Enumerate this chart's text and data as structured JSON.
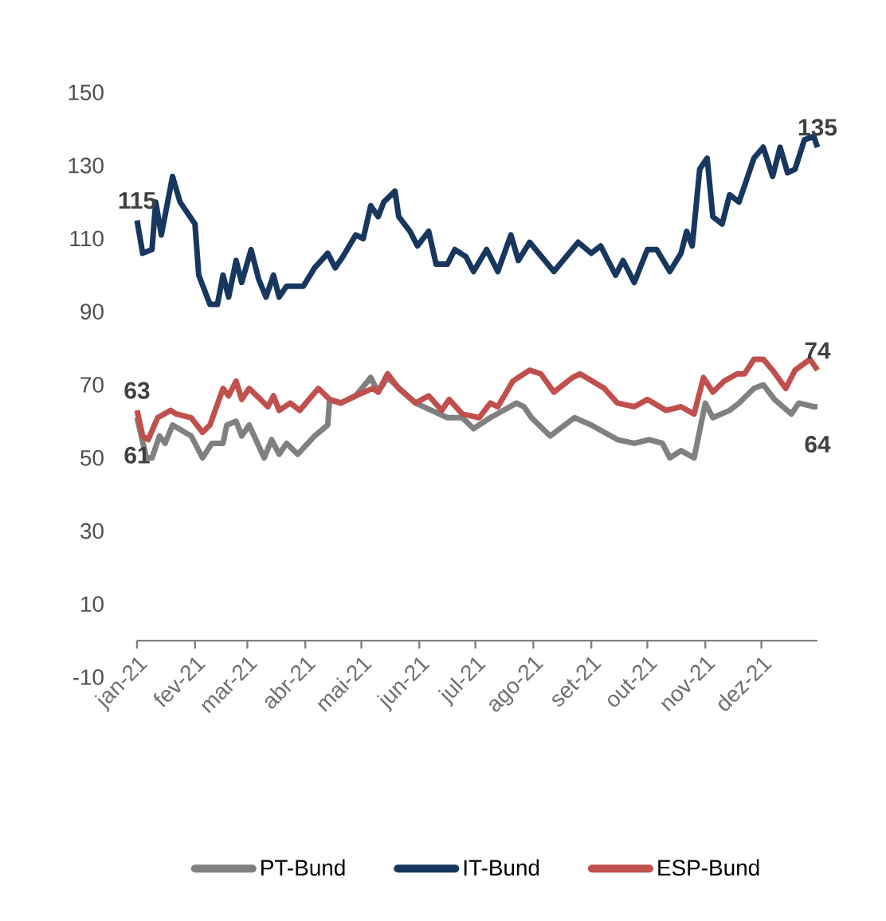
{
  "chart_data": {
    "type": "line",
    "xlim": [
      "2021-01-01",
      "2021-12-31"
    ],
    "xticks": [
      {
        "value": "2021-01-01",
        "label": "jan-21"
      },
      {
        "value": "2021-02-01",
        "label": "fev-21"
      },
      {
        "value": "2021-03-01",
        "label": "mar-21"
      },
      {
        "value": "2021-04-01",
        "label": "abr-21"
      },
      {
        "value": "2021-05-01",
        "label": "mai-21"
      },
      {
        "value": "2021-06-01",
        "label": "jun-21"
      },
      {
        "value": "2021-07-01",
        "label": "jul-21"
      },
      {
        "value": "2021-08-01",
        "label": "ago-21"
      },
      {
        "value": "2021-09-01",
        "label": "set-21"
      },
      {
        "value": "2021-10-01",
        "label": "out-21"
      },
      {
        "value": "2021-11-01",
        "label": "nov-21"
      },
      {
        "value": "2021-12-01",
        "label": "dez-21"
      }
    ],
    "ylim": [
      -10,
      150
    ],
    "yticks": [
      -10,
      10,
      30,
      50,
      70,
      90,
      110,
      130,
      150
    ],
    "legend": "bottom",
    "line_style": "solid",
    "series": [
      {
        "name": "PT-Bund",
        "color": "#808080",
        "x": [
          "2021-01-01",
          "2021-01-06",
          "2021-01-09",
          "2021-01-13",
          "2021-01-16",
          "2021-01-20",
          "2021-01-30",
          "2021-02-05",
          "2021-02-10",
          "2021-02-16",
          "2021-02-18",
          "2021-02-23",
          "2021-02-26",
          "2021-03-02",
          "2021-03-10",
          "2021-03-14",
          "2021-03-18",
          "2021-03-22",
          "2021-03-28",
          "2021-04-06",
          "2021-04-13",
          "2021-04-14",
          "2021-04-20",
          "2021-04-28",
          "2021-05-06",
          "2021-05-10",
          "2021-05-15",
          "2021-05-30",
          "2021-06-16",
          "2021-06-24",
          "2021-06-30",
          "2021-07-09",
          "2021-07-23",
          "2021-07-27",
          "2021-07-31",
          "2021-08-10",
          "2021-08-23",
          "2021-09-01",
          "2021-09-15",
          "2021-09-24",
          "2021-10-02",
          "2021-10-09",
          "2021-10-13",
          "2021-10-19",
          "2021-10-26",
          "2021-11-01",
          "2021-11-05",
          "2021-11-14",
          "2021-11-19",
          "2021-11-27",
          "2021-12-02",
          "2021-12-08",
          "2021-12-17",
          "2021-12-21",
          "2021-12-29",
          "2021-12-31"
        ],
        "values": [
          61,
          50,
          50,
          56,
          54,
          59,
          56,
          50,
          54,
          54,
          59,
          60,
          56,
          59,
          50,
          55,
          51,
          54,
          51,
          56,
          59,
          66,
          65,
          67,
          72,
          68,
          72,
          65,
          61,
          61,
          58,
          61,
          65,
          64,
          61,
          56,
          61,
          59,
          55,
          54,
          55,
          54,
          50,
          52,
          50,
          65,
          61,
          63,
          65,
          69,
          70,
          66,
          62,
          65,
          64,
          64
        ]
      },
      {
        "name": "IT-Bund",
        "color": "#17375e",
        "x": [
          "2021-01-01",
          "2021-01-04",
          "2021-01-09",
          "2021-01-11",
          "2021-01-14",
          "2021-01-20",
          "2021-01-24",
          "2021-02-01",
          "2021-02-03",
          "2021-02-09",
          "2021-02-13",
          "2021-02-16",
          "2021-02-19",
          "2021-02-23",
          "2021-02-26",
          "2021-03-03",
          "2021-03-07",
          "2021-03-11",
          "2021-03-15",
          "2021-03-18",
          "2021-03-22",
          "2021-03-31",
          "2021-04-06",
          "2021-04-13",
          "2021-04-17",
          "2021-04-21",
          "2021-04-28",
          "2021-05-02",
          "2021-05-06",
          "2021-05-10",
          "2021-05-13",
          "2021-05-19",
          "2021-05-21",
          "2021-05-27",
          "2021-05-31",
          "2021-06-06",
          "2021-06-10",
          "2021-06-16",
          "2021-06-20",
          "2021-06-26",
          "2021-06-30",
          "2021-07-07",
          "2021-07-13",
          "2021-07-20",
          "2021-07-24",
          "2021-07-30",
          "2021-08-12",
          "2021-08-25",
          "2021-09-01",
          "2021-09-06",
          "2021-09-14",
          "2021-09-18",
          "2021-09-24",
          "2021-10-01",
          "2021-10-06",
          "2021-10-13",
          "2021-10-19",
          "2021-10-22",
          "2021-10-25",
          "2021-10-29",
          "2021-11-02",
          "2021-11-05",
          "2021-11-10",
          "2021-11-14",
          "2021-11-19",
          "2021-11-27",
          "2021-12-02",
          "2021-12-07",
          "2021-12-11",
          "2021-12-15",
          "2021-12-19",
          "2021-12-24",
          "2021-12-29",
          "2021-12-31"
        ],
        "values": [
          115,
          106,
          107,
          120,
          111,
          127,
          120,
          114,
          100,
          92,
          92,
          100,
          94,
          104,
          98,
          107,
          99,
          94,
          100,
          94,
          97,
          97,
          102,
          106,
          102,
          105,
          111,
          110,
          119,
          116,
          120,
          123,
          116,
          112,
          108,
          112,
          103,
          103,
          107,
          105,
          101,
          107,
          101,
          111,
          104,
          109,
          101,
          109,
          106,
          108,
          100,
          104,
          98,
          107,
          107,
          101,
          106,
          112,
          108,
          129,
          132,
          116,
          114,
          122,
          120,
          132,
          135,
          127,
          135,
          128,
          129,
          137,
          138,
          135
        ]
      },
      {
        "name": "ESP-Bund",
        "color": "#c0504d",
        "x": [
          "2021-01-01",
          "2021-01-04",
          "2021-01-07",
          "2021-01-12",
          "2021-01-19",
          "2021-01-22",
          "2021-01-30",
          "2021-02-05",
          "2021-02-09",
          "2021-02-16",
          "2021-02-19",
          "2021-02-23",
          "2021-02-26",
          "2021-03-02",
          "2021-03-08",
          "2021-03-12",
          "2021-03-15",
          "2021-03-18",
          "2021-03-24",
          "2021-03-29",
          "2021-04-08",
          "2021-04-14",
          "2021-04-20",
          "2021-04-28",
          "2021-05-07",
          "2021-05-10",
          "2021-05-15",
          "2021-05-21",
          "2021-05-30",
          "2021-06-06",
          "2021-06-13",
          "2021-06-17",
          "2021-06-24",
          "2021-07-03",
          "2021-07-09",
          "2021-07-13",
          "2021-07-21",
          "2021-07-30",
          "2021-08-05",
          "2021-08-12",
          "2021-08-22",
          "2021-08-26",
          "2021-09-08",
          "2021-09-15",
          "2021-09-24",
          "2021-10-01",
          "2021-10-11",
          "2021-10-19",
          "2021-10-26",
          "2021-10-31",
          "2021-11-05",
          "2021-11-11",
          "2021-11-18",
          "2021-11-22",
          "2021-11-27",
          "2021-12-02",
          "2021-12-07",
          "2021-12-14",
          "2021-12-19",
          "2021-12-27",
          "2021-12-31"
        ],
        "values": [
          63,
          56,
          55,
          61,
          63,
          62,
          61,
          57,
          59,
          69,
          67,
          71,
          66,
          69,
          66,
          64,
          67,
          63,
          65,
          63,
          69,
          66,
          65,
          67,
          69,
          68,
          73,
          69,
          65,
          67,
          63,
          66,
          62,
          61,
          65,
          64,
          71,
          74,
          73,
          68,
          72,
          73,
          69,
          65,
          64,
          66,
          63,
          64,
          62,
          72,
          68,
          71,
          73,
          73,
          77,
          77,
          74,
          69,
          74,
          77,
          74
        ]
      }
    ],
    "annotations": [
      {
        "text": "115",
        "x": "2021-01-01",
        "y": 115
      },
      {
        "text": "63",
        "x": "2021-01-01",
        "y": 63
      },
      {
        "text": "61",
        "x": "2021-01-01",
        "y": 61
      },
      {
        "text": "135",
        "x": "2021-12-31",
        "y": 135
      },
      {
        "text": "74",
        "x": "2021-12-31",
        "y": 74
      },
      {
        "text": "64",
        "x": "2021-12-31",
        "y": 64
      }
    ]
  }
}
